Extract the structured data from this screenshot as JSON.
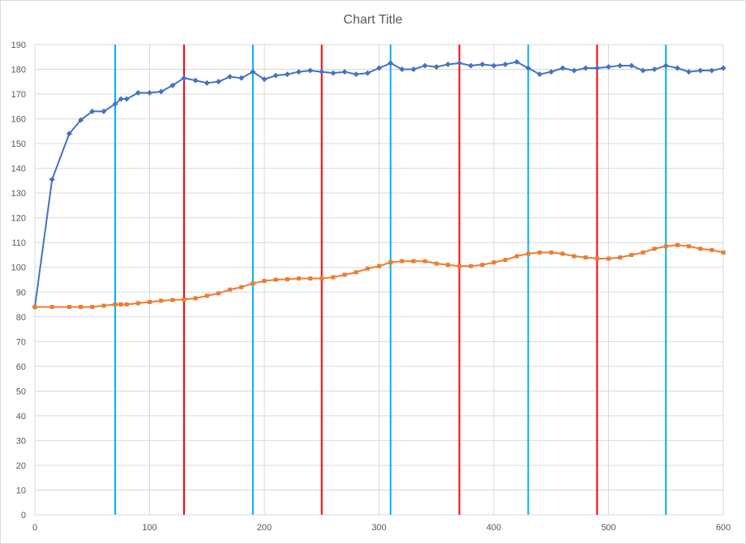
{
  "chart_data": {
    "type": "line",
    "title": "Chart Title",
    "xlabel": "",
    "ylabel": "",
    "xlim": [
      0,
      600
    ],
    "ylim": [
      0,
      190
    ],
    "x_ticks": [
      0,
      100,
      200,
      300,
      400,
      500,
      600
    ],
    "y_ticks": [
      0,
      10,
      20,
      30,
      40,
      50,
      60,
      70,
      80,
      90,
      100,
      110,
      120,
      130,
      140,
      150,
      160,
      170,
      180,
      190
    ],
    "grid": true,
    "legend": "none",
    "series": [
      {
        "color": "#4472C4",
        "marker": "diamond",
        "x": [
          0,
          15,
          30,
          40,
          50,
          60,
          70,
          75,
          80,
          90,
          100,
          110,
          120,
          130,
          140,
          150,
          160,
          170,
          180,
          190,
          200,
          210,
          220,
          230,
          240,
          250,
          260,
          270,
          280,
          290,
          300,
          310,
          320,
          330,
          340,
          350,
          360,
          370,
          380,
          390,
          400,
          410,
          420,
          430,
          440,
          450,
          460,
          470,
          480,
          490,
          500,
          510,
          520,
          530,
          540,
          550,
          560,
          570,
          580,
          590,
          600
        ],
        "y": [
          84,
          135.5,
          154,
          159.5,
          163,
          163,
          166,
          168,
          168,
          170.5,
          170.5,
          171,
          173.5,
          176.5,
          175.5,
          174.5,
          175,
          177,
          176.5,
          179,
          176,
          177.5,
          178,
          179,
          179.5,
          179,
          178.5,
          179,
          178,
          178.5,
          180.5,
          182.5,
          180,
          180,
          181.5,
          181,
          182,
          182.5,
          181.5,
          182,
          181.5,
          182,
          183,
          180.5,
          178,
          179,
          180.5,
          179.5,
          180.5,
          180.5,
          181,
          181.5,
          181.5,
          179.5,
          180,
          181.5,
          180.5,
          179,
          179.5,
          179.5,
          180.5
        ]
      },
      {
        "color": "#ED7D31",
        "marker": "square",
        "x": [
          0,
          15,
          30,
          40,
          50,
          60,
          70,
          75,
          80,
          90,
          100,
          110,
          120,
          130,
          140,
          150,
          160,
          170,
          180,
          190,
          200,
          210,
          220,
          230,
          240,
          250,
          260,
          270,
          280,
          290,
          300,
          310,
          320,
          330,
          340,
          350,
          360,
          370,
          380,
          390,
          400,
          410,
          420,
          430,
          440,
          450,
          460,
          470,
          480,
          490,
          500,
          510,
          520,
          530,
          540,
          550,
          560,
          570,
          580,
          590,
          600
        ],
        "y": [
          84,
          84,
          84,
          84,
          84,
          84.5,
          85,
          85,
          85,
          85.5,
          86,
          86.5,
          86.8,
          87,
          87.5,
          88.5,
          89.5,
          91,
          92,
          93.5,
          94.5,
          95,
          95.2,
          95.5,
          95.5,
          95.5,
          96,
          97,
          98,
          99.5,
          100.5,
          102,
          102.5,
          102.5,
          102.5,
          101.5,
          101,
          100.5,
          100.5,
          101,
          102,
          103,
          104.5,
          105.5,
          106,
          106,
          105.5,
          104.5,
          104,
          103.5,
          103.5,
          104,
          105,
          106,
          107.5,
          108.5,
          109,
          108.5,
          107.5,
          107,
          106
        ]
      }
    ],
    "vertical_lines": [
      {
        "color": "#00B0F0",
        "x": [
          70,
          190,
          310,
          430,
          550
        ]
      },
      {
        "color": "#FF0000",
        "x": [
          130,
          250,
          370,
          490
        ]
      }
    ]
  }
}
